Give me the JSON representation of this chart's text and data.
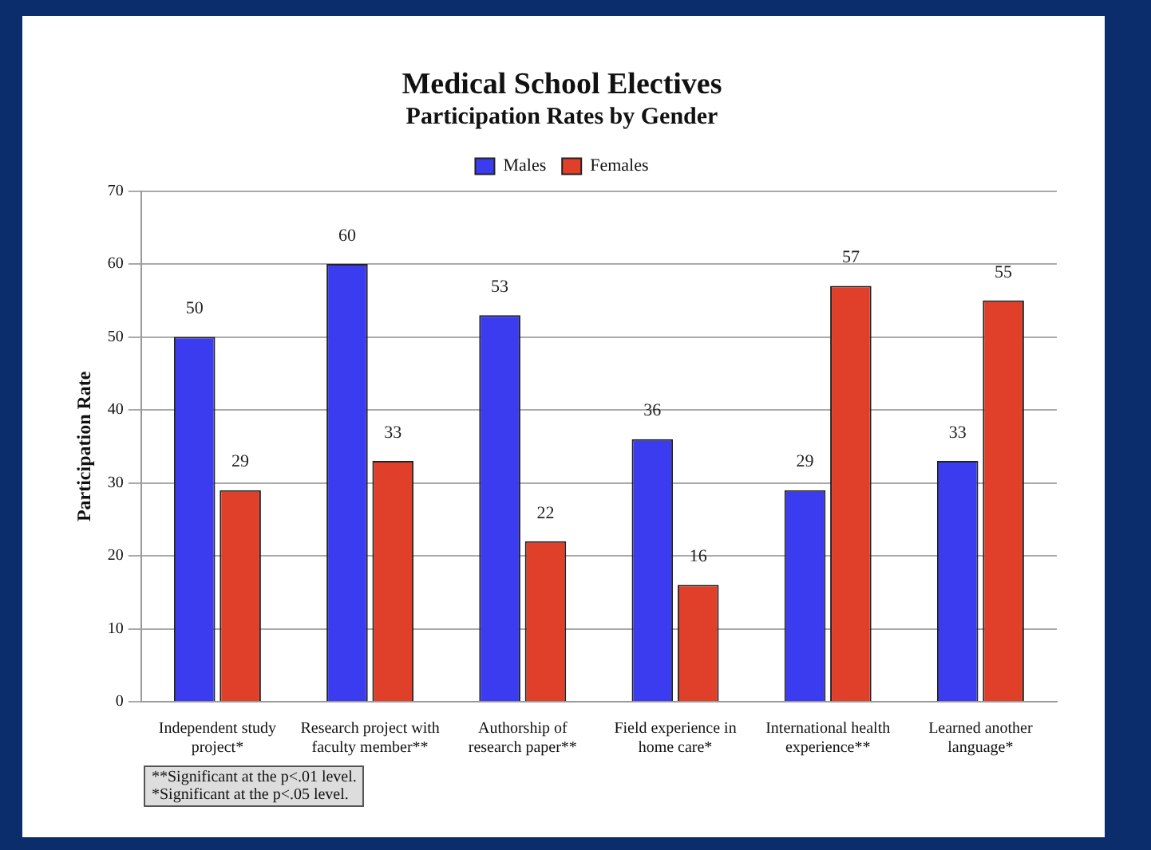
{
  "chart_data": {
    "type": "bar",
    "title": "Medical School Electives",
    "subtitle": "Participation Rates by Gender",
    "ylabel": "Participation Rate",
    "categories": [
      "Independent study project*",
      "Research project with faculty member**",
      "Authorship of research paper**",
      "Field experience in home care*",
      "International health experience**",
      "Learned another language*"
    ],
    "series": [
      {
        "name": "Males",
        "color": "#3b3bf0",
        "values": [
          50,
          60,
          53,
          36,
          29,
          33
        ]
      },
      {
        "name": "Females",
        "color": "#e0402a",
        "values": [
          29,
          33,
          22,
          16,
          57,
          55
        ]
      }
    ],
    "ylim": [
      0,
      70
    ],
    "yticks": [
      0,
      10,
      20,
      30,
      40,
      50,
      60,
      70
    ],
    "grid": "y",
    "legend": "top",
    "data_labels": true,
    "annotations": [
      "**Significant at the p<.01 level.",
      "*Significant at the p<.05 level."
    ]
  }
}
